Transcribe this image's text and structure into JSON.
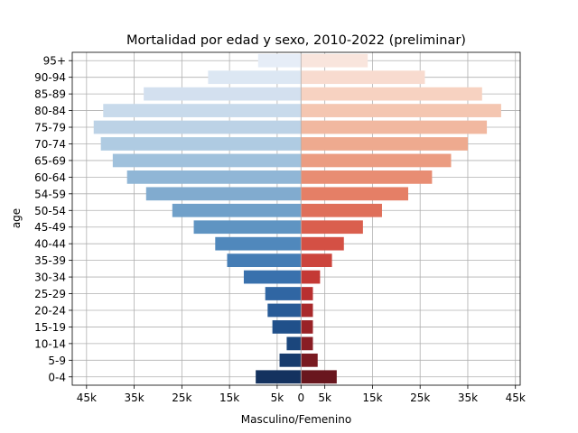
{
  "chart_data": {
    "type": "bar",
    "orientation": "horizontal",
    "title": "Mortalidad por edad y sexo, 2010-2022 (preliminar)",
    "xlabel": "Masculino/Femenino",
    "ylabel": "age",
    "xlim": [
      -48000,
      46000
    ],
    "grid": true,
    "x_ticks": [
      {
        "value": -45000,
        "label": "45k"
      },
      {
        "value": -35000,
        "label": "35k"
      },
      {
        "value": -25000,
        "label": "25k"
      },
      {
        "value": -15000,
        "label": "15k"
      },
      {
        "value": -5000,
        "label": "5k"
      },
      {
        "value": 0,
        "label": "0"
      },
      {
        "value": 5000,
        "label": "5k"
      },
      {
        "value": 15000,
        "label": "15k"
      },
      {
        "value": 25000,
        "label": "25k"
      },
      {
        "value": 35000,
        "label": "35k"
      },
      {
        "value": 45000,
        "label": "45k"
      }
    ],
    "categories": [
      "95+",
      "90-94",
      "85-89",
      "80-84",
      "75-79",
      "70-74",
      "65-69",
      "60-64",
      "54-59",
      "50-54",
      "45-49",
      "40-44",
      "35-39",
      "30-34",
      "25-29",
      "20-24",
      "15-19",
      "10-14",
      "5-9",
      "0-4"
    ],
    "series": [
      {
        "side": "left",
        "palette": "Blues",
        "values": [
          9000,
          19500,
          33000,
          41500,
          43500,
          42000,
          39500,
          36500,
          32500,
          27000,
          22500,
          18000,
          15500,
          12000,
          7500,
          7000,
          6000,
          3000,
          4500,
          9500
        ]
      },
      {
        "side": "right",
        "palette": "Reds",
        "values": [
          14000,
          26000,
          38000,
          42000,
          39000,
          35000,
          31500,
          27500,
          22500,
          17000,
          13000,
          9000,
          6500,
          4000,
          2500,
          2500,
          2500,
          2500,
          3500,
          7500
        ]
      }
    ]
  }
}
